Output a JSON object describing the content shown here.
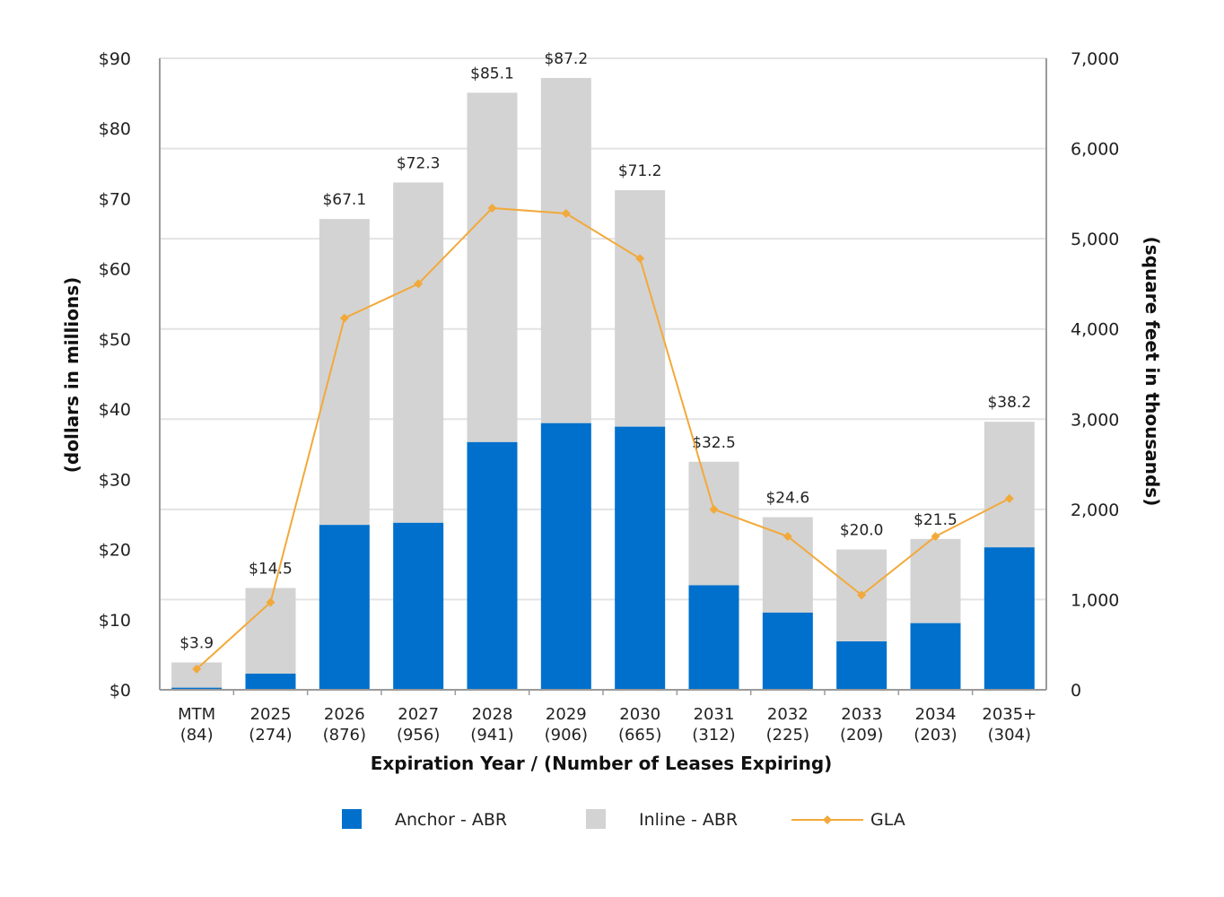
{
  "chart_data": {
    "type": "bar",
    "stacked": true,
    "categories": [
      "MTM",
      "2025",
      "2026",
      "2027",
      "2028",
      "2029",
      "2030",
      "2031",
      "2032",
      "2033",
      "2034",
      "2035+"
    ],
    "category_counts": [
      "(84)",
      "(274)",
      "(876)",
      "(956)",
      "(941)",
      "(906)",
      "(665)",
      "(312)",
      "(225)",
      "(209)",
      "(203)",
      "(304)"
    ],
    "series": [
      {
        "name": "Anchor - ABR",
        "axis": "left",
        "color": "#0070CC",
        "values": [
          0.3,
          2.3,
          23.5,
          23.8,
          35.3,
          38.0,
          37.5,
          14.9,
          11.0,
          6.9,
          9.5,
          20.3
        ]
      },
      {
        "name": "Inline - ABR",
        "axis": "left",
        "color": "#D3D3D3",
        "values": [
          3.6,
          12.2,
          43.6,
          48.5,
          49.8,
          49.2,
          33.7,
          17.6,
          13.6,
          13.1,
          12.0,
          17.9
        ]
      },
      {
        "name": "GLA",
        "type": "line",
        "axis": "right",
        "color": "#F2A93B",
        "values": [
          230,
          970,
          4120,
          4500,
          5340,
          5280,
          4780,
          2000,
          1700,
          1050,
          1700,
          2120
        ]
      }
    ],
    "totals": [
      3.9,
      14.5,
      67.1,
      72.3,
      85.1,
      87.2,
      71.2,
      32.5,
      24.6,
      20.0,
      21.5,
      38.2
    ],
    "total_labels": [
      "$3.9",
      "$14.5",
      "$67.1",
      "$72.3",
      "$85.1",
      "$87.2",
      "$71.2",
      "$32.5",
      "$24.6",
      "$20.0",
      "$21.5",
      "$38.2"
    ],
    "xlabel": "Expiration Year / (Number of Leases Expiring)",
    "ylabel": "(dollars in millions)",
    "y2label": "(square feet in thousands)",
    "ylim": [
      0,
      90
    ],
    "y2lim": [
      0,
      7000
    ],
    "yticks": [
      0,
      10,
      20,
      30,
      40,
      50,
      60,
      70,
      80,
      90
    ],
    "ytick_labels": [
      "$0",
      "$10",
      "$20",
      "$30",
      "$40",
      "$50",
      "$60",
      "$70",
      "$80",
      "$90"
    ],
    "y2ticks": [
      0,
      1000,
      2000,
      3000,
      4000,
      5000,
      6000,
      7000
    ],
    "y2tick_labels": [
      "0",
      "1,000",
      "2,000",
      "3,000",
      "4,000",
      "5,000",
      "6,000",
      "7,000"
    ],
    "grid": true,
    "legend_position": "bottom-center"
  }
}
